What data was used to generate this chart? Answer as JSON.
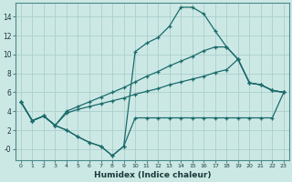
{
  "xlabel": "Humidex (Indice chaleur)",
  "background_color": "#cce8e5",
  "grid_color": "#aacfcc",
  "line_color": "#1a6b6b",
  "xlim": [
    -0.5,
    23.5
  ],
  "ylim": [
    -1.2,
    15.5
  ],
  "yticks": [
    0,
    2,
    4,
    6,
    8,
    10,
    12,
    14
  ],
  "ytick_labels": [
    "-0",
    "2",
    "4",
    "6",
    "8",
    "10",
    "12",
    "14"
  ],
  "xticks": [
    0,
    1,
    2,
    3,
    4,
    5,
    6,
    7,
    8,
    9,
    10,
    11,
    12,
    13,
    14,
    15,
    16,
    17,
    18,
    19,
    20,
    21,
    22,
    23
  ],
  "series": [
    {
      "x": [
        0,
        1,
        2,
        3,
        4,
        5,
        6,
        7,
        8,
        9,
        10,
        11,
        12,
        13,
        14,
        15,
        16,
        17,
        18,
        19,
        20,
        21,
        22,
        23
      ],
      "y": [
        5.0,
        3.0,
        3.5,
        2.5,
        2.0,
        1.3,
        0.7,
        0.3,
        -0.7,
        0.3,
        3.3,
        3.3,
        3.3,
        3.3,
        3.3,
        3.3,
        3.3,
        3.3,
        3.3,
        3.3,
        3.3,
        3.3,
        3.3,
        6.0
      ]
    },
    {
      "x": [
        0,
        1,
        2,
        3,
        4,
        5,
        6,
        7,
        8,
        9,
        10,
        11,
        12,
        13,
        14,
        15,
        16,
        17,
        18,
        19,
        20,
        21,
        22,
        23
      ],
      "y": [
        5.0,
        3.0,
        3.5,
        2.5,
        3.8,
        4.2,
        4.5,
        4.8,
        5.1,
        5.4,
        5.8,
        6.1,
        6.4,
        6.8,
        7.1,
        7.4,
        7.7,
        8.1,
        8.4,
        9.5,
        7.0,
        6.8,
        6.2,
        6.0
      ]
    },
    {
      "x": [
        0,
        1,
        2,
        3,
        4,
        5,
        6,
        7,
        8,
        9,
        10,
        11,
        12,
        13,
        14,
        15,
        16,
        17,
        18,
        19,
        20,
        21,
        22,
        23
      ],
      "y": [
        5.0,
        3.0,
        3.5,
        2.5,
        4.0,
        4.5,
        5.0,
        5.5,
        6.0,
        6.5,
        7.1,
        7.7,
        8.2,
        8.8,
        9.3,
        9.8,
        10.4,
        10.8,
        10.8,
        9.5,
        7.0,
        6.8,
        6.2,
        6.0
      ]
    },
    {
      "x": [
        0,
        1,
        2,
        3,
        4,
        5,
        6,
        7,
        8,
        9,
        10,
        11,
        12,
        13,
        14,
        15,
        16,
        17,
        18,
        19,
        20,
        21,
        22,
        23
      ],
      "y": [
        5.0,
        3.0,
        3.5,
        2.5,
        2.0,
        1.3,
        0.7,
        0.3,
        -0.7,
        0.3,
        10.3,
        11.2,
        11.8,
        13.0,
        15.0,
        15.0,
        14.3,
        12.5,
        10.8,
        9.5,
        7.0,
        6.8,
        6.2,
        6.0
      ]
    }
  ]
}
